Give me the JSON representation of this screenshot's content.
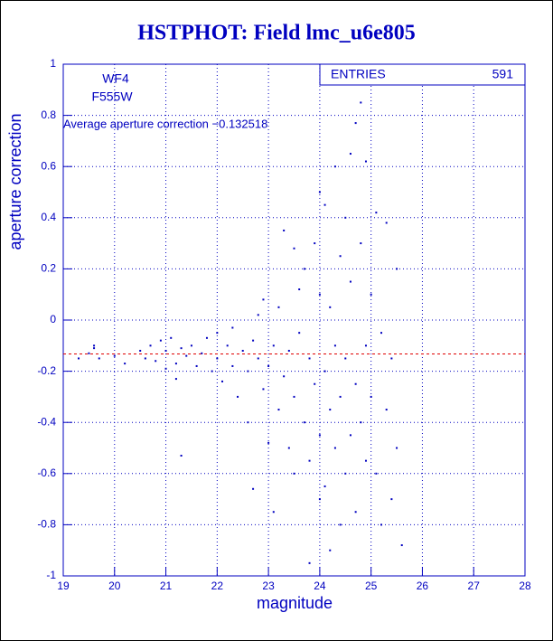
{
  "chart_data": {
    "type": "scatter",
    "title": "HSTPHOT: Field lmc_u6e805",
    "x_label": "magnitude",
    "y_label": "aperture correction",
    "annotations": [
      "WF4",
      "F555W"
    ],
    "stats": {
      "label": "ENTRIES",
      "value": 591
    },
    "reference_line": {
      "value": -0.132518,
      "label": "Average aperture correction −0.132518",
      "color": "#e00000"
    },
    "color": "#0000c0",
    "grid": true,
    "xlim": [
      19,
      28
    ],
    "ylim": [
      -1,
      1
    ],
    "xticks": [
      19,
      20,
      21,
      22,
      23,
      24,
      25,
      26,
      27,
      28
    ],
    "yticks": [
      -1,
      -0.8,
      -0.6,
      -0.4,
      -0.2,
      0,
      0.2,
      0.4,
      0.6,
      0.8,
      1
    ],
    "x": [
      19.3,
      19.5,
      19.6,
      19.7,
      20.0,
      20.2,
      20.5,
      20.6,
      20.7,
      20.8,
      20.9,
      21.0,
      21.0,
      21.1,
      21.2,
      21.2,
      21.3,
      21.4,
      21.5,
      21.6,
      21.7,
      21.8,
      21.9,
      22.0,
      22.0,
      22.1,
      22.2,
      22.3,
      22.3,
      22.4,
      22.5,
      22.6,
      22.6,
      22.7,
      22.7,
      22.8,
      22.8,
      22.9,
      22.9,
      23.0,
      23.0,
      23.1,
      23.1,
      23.2,
      23.2,
      23.3,
      23.3,
      23.4,
      23.4,
      23.5,
      23.5,
      23.5,
      23.6,
      23.6,
      23.7,
      23.7,
      23.8,
      23.8,
      23.9,
      23.9,
      24.0,
      24.0,
      24.0,
      24.0,
      24.1,
      24.1,
      24.1,
      24.2,
      24.2,
      24.2,
      24.3,
      24.3,
      24.3,
      24.4,
      24.4,
      24.4,
      24.5,
      24.5,
      24.5,
      24.6,
      24.6,
      24.6,
      24.7,
      24.7,
      24.7,
      24.8,
      24.8,
      24.8,
      24.9,
      24.9,
      25.0,
      25.0,
      25.1,
      25.1,
      25.2,
      25.2,
      25.3,
      25.3,
      25.4,
      25.4,
      25.5,
      25.5,
      25.6,
      21.3,
      23.8,
      24.9,
      19.6
    ],
    "values": [
      -0.15,
      -0.13,
      -0.11,
      -0.15,
      -0.14,
      -0.17,
      -0.12,
      -0.15,
      -0.1,
      -0.16,
      -0.08,
      -0.12,
      -0.19,
      -0.07,
      -0.17,
      -0.23,
      -0.11,
      -0.14,
      -0.1,
      -0.18,
      -0.13,
      -0.07,
      -0.2,
      -0.15,
      -0.05,
      -0.24,
      -0.1,
      -0.18,
      -0.03,
      -0.3,
      -0.12,
      -0.2,
      -0.4,
      -0.08,
      -0.66,
      -0.15,
      0.02,
      -0.27,
      0.08,
      -0.18,
      -0.48,
      -0.1,
      -0.75,
      -0.35,
      0.05,
      -0.22,
      0.35,
      -0.12,
      -0.5,
      0.28,
      -0.3,
      -0.6,
      -0.05,
      0.12,
      -0.4,
      0.2,
      -0.15,
      -0.55,
      0.3,
      -0.25,
      -0.45,
      0.5,
      -0.7,
      0.1,
      -0.2,
      0.45,
      -0.65,
      0.05,
      -0.35,
      -0.9,
      0.6,
      -0.1,
      -0.5,
      0.25,
      -0.3,
      -0.8,
      0.4,
      -0.15,
      -0.6,
      0.65,
      -0.45,
      0.15,
      0.77,
      -0.25,
      -0.75,
      0.85,
      0.3,
      -0.4,
      -0.1,
      -0.55,
      0.1,
      -0.3,
      0.42,
      -0.6,
      -0.05,
      -0.8,
      0.38,
      -0.35,
      -0.15,
      -0.7,
      0.2,
      -0.5,
      -0.88,
      -0.53,
      -0.95,
      0.62,
      -0.1
    ]
  }
}
